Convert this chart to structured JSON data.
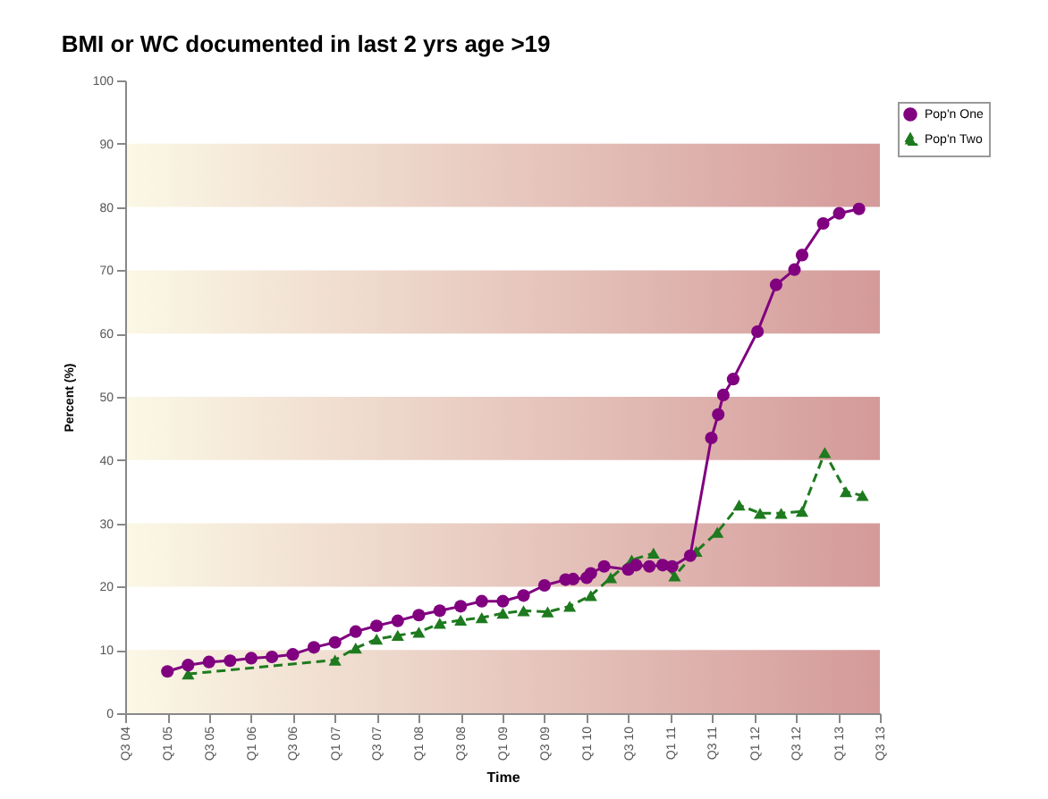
{
  "chart_data": {
    "type": "line",
    "title": "BMI or WC documented in last 2 yrs age >19",
    "xlabel": "Time",
    "ylabel": "Percent (%)",
    "xlim": [
      "2004-07-01",
      "2013-07-01"
    ],
    "xticks": [
      {
        "value": "2004-07-01",
        "label": "Q3 04"
      },
      {
        "value": "2005-01-01",
        "label": "Q1 05"
      },
      {
        "value": "2005-07-01",
        "label": "Q3 05"
      },
      {
        "value": "2006-01-01",
        "label": "Q1 06"
      },
      {
        "value": "2006-07-01",
        "label": "Q3 06"
      },
      {
        "value": "2007-01-01",
        "label": "Q1 07"
      },
      {
        "value": "2007-07-01",
        "label": "Q3 07"
      },
      {
        "value": "2008-01-01",
        "label": "Q1 08"
      },
      {
        "value": "2008-07-01",
        "label": "Q3 08"
      },
      {
        "value": "2009-01-01",
        "label": "Q1 09"
      },
      {
        "value": "2009-07-01",
        "label": "Q3 09"
      },
      {
        "value": "2010-01-01",
        "label": "Q1 10"
      },
      {
        "value": "2010-07-01",
        "label": "Q3 10"
      },
      {
        "value": "2011-01-01",
        "label": "Q1 11"
      },
      {
        "value": "2011-07-01",
        "label": "Q3 11"
      },
      {
        "value": "2012-01-01",
        "label": "Q1 12"
      },
      {
        "value": "2012-07-01",
        "label": "Q3 12"
      },
      {
        "value": "2013-01-01",
        "label": "Q1 13"
      },
      {
        "value": "2013-07-01",
        "label": "Q3 13"
      }
    ],
    "ylim": [
      0,
      100
    ],
    "yticks": [
      0,
      10,
      20,
      30,
      40,
      50,
      60,
      70,
      80,
      90,
      100
    ],
    "grid": false,
    "legend": "top right",
    "bands": [
      {
        "axis": "y",
        "from": 0,
        "to": 10,
        "color": "#d49a9a"
      },
      {
        "axis": "y",
        "from": 20,
        "to": 30,
        "color": "#d49a9a"
      },
      {
        "axis": "y",
        "from": 40,
        "to": 50,
        "color": "#d49a9a"
      },
      {
        "axis": "y",
        "from": 60,
        "to": 70,
        "color": "#d49a9a"
      },
      {
        "axis": "y",
        "from": 80,
        "to": 90,
        "color": "#d49a9a"
      }
    ],
    "series": [
      {
        "name": "Pop'n One",
        "color": "#800080",
        "marker": "circle",
        "line_style": "solid",
        "x": [
          "2005-01-01",
          "2005-04-01",
          "2005-07-01",
          "2005-10-01",
          "2006-01-01",
          "2006-04-01",
          "2006-07-01",
          "2006-10-01",
          "2007-01-01",
          "2007-04-01",
          "2007-07-01",
          "2007-10-01",
          "2008-01-01",
          "2008-04-01",
          "2008-07-01",
          "2008-10-01",
          "2009-01-01",
          "2009-04-01",
          "2009-07-01",
          "2009-10-01",
          "2009-11-03",
          "2010-01-01",
          "2010-01-19",
          "2010-03-18",
          "2010-07-01",
          "2010-08-04",
          "2010-10-01",
          "2010-11-28",
          "2011-01-08",
          "2011-03-28",
          "2011-06-28",
          "2011-07-28",
          "2011-08-19",
          "2011-10-01",
          "2012-01-15",
          "2012-04-05",
          "2012-06-24",
          "2012-07-27",
          "2012-10-27",
          "2013-01-05",
          "2013-04-01"
        ],
        "values": [
          6.6,
          7.6,
          8.1,
          8.3,
          8.7,
          8.9,
          9.3,
          10.4,
          11.2,
          12.9,
          13.8,
          14.6,
          15.5,
          16.2,
          16.9,
          17.7,
          17.7,
          18.6,
          20.2,
          21.1,
          21.2,
          21.4,
          22.1,
          23.2,
          22.7,
          23.4,
          23.2,
          23.4,
          23.2,
          24.9,
          43.5,
          47.2,
          50.3,
          52.8,
          60.3,
          67.7,
          70.1,
          72.4,
          77.4,
          79.0,
          79.7
        ]
      },
      {
        "name": "Pop'n Two",
        "color": "#1e7a1e",
        "marker": "triangle",
        "line_style": "dashed",
        "x": [
          "2005-04-01",
          "2007-01-01",
          "2007-04-01",
          "2007-07-01",
          "2007-10-01",
          "2008-01-01",
          "2008-04-01",
          "2008-07-01",
          "2008-10-01",
          "2009-01-01",
          "2009-04-01",
          "2009-07-15",
          "2009-10-19",
          "2010-01-19",
          "2010-04-16",
          "2010-07-16",
          "2010-10-19",
          "2011-01-19",
          "2011-04-23",
          "2011-07-24",
          "2011-10-27",
          "2012-01-26",
          "2012-04-27",
          "2012-07-27",
          "2012-11-03",
          "2013-02-03",
          "2013-04-16"
        ],
        "values": [
          6.2,
          8.4,
          10.3,
          11.7,
          12.3,
          12.8,
          14.2,
          14.7,
          15.1,
          15.8,
          16.2,
          16.0,
          16.9,
          18.6,
          21.4,
          24.2,
          25.3,
          21.7,
          25.6,
          28.6,
          32.9,
          31.6,
          31.6,
          31.9,
          41.2,
          35.0,
          34.4
        ]
      }
    ]
  }
}
